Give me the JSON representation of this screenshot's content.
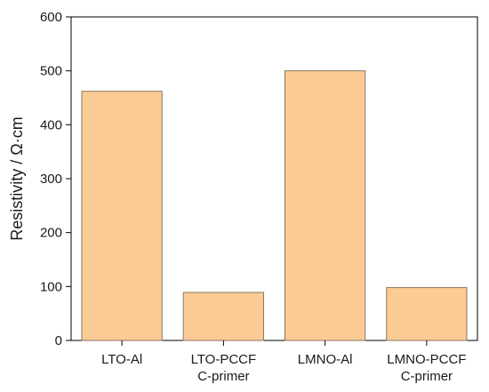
{
  "chart_data": {
    "type": "bar",
    "title": "",
    "xlabel": "",
    "ylabel": "Resistivity / Ω·cm",
    "categories": [
      [
        "LTO-Al"
      ],
      [
        "LTO-PCCF",
        "C-primer"
      ],
      [
        "LMNO-Al"
      ],
      [
        "LMNO-PCCF",
        "C-primer"
      ]
    ],
    "values": [
      462,
      89,
      500,
      98
    ],
    "ylim": [
      0,
      600
    ],
    "yticks": [
      0,
      100,
      200,
      300,
      400,
      500,
      600
    ],
    "grid": false,
    "legend": "none",
    "colors": {
      "bar_fill": "#FBCB94",
      "bar_stroke": "#8a7560",
      "axis": "#000000"
    }
  }
}
